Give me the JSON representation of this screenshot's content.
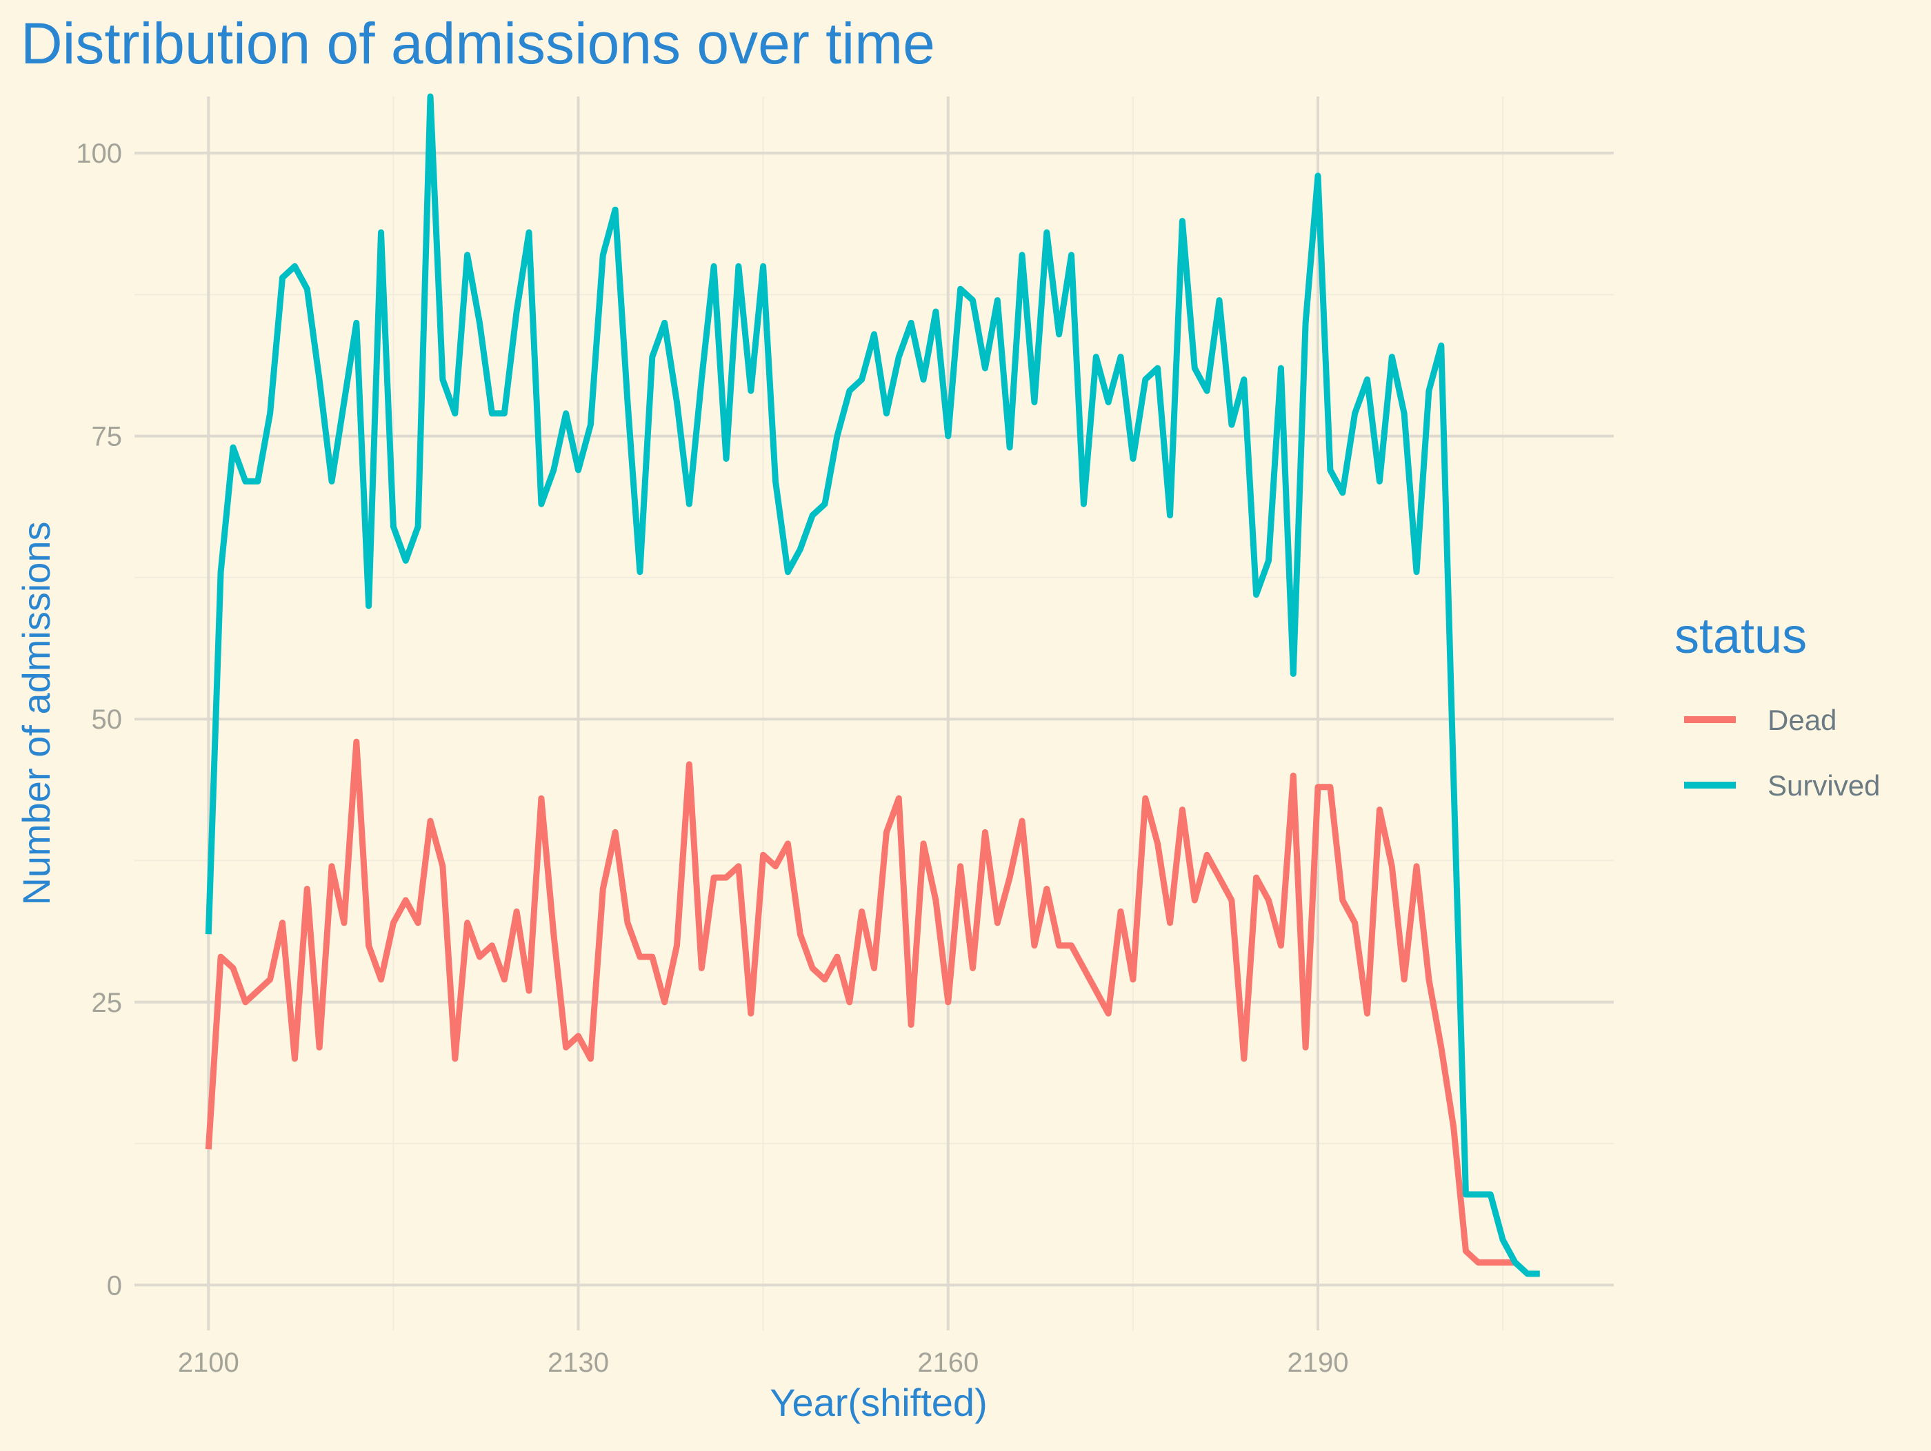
{
  "colors": {
    "background": "#fdf6e3",
    "title": "#2a86d0",
    "tick": "#a3a39a",
    "grid_major": "#dedad0",
    "grid_minor": "#f2ecdd",
    "legend_text": "#6b7b84"
  },
  "chart_data": {
    "type": "line",
    "title": "Distribution of admissions over time",
    "xlabel": "Year(shifted)",
    "ylabel": "Number of admissions",
    "xlim": [
      2094.0,
      2214.0
    ],
    "ylim": [
      -4,
      105
    ],
    "x_ticks": [
      2100,
      2130,
      2160,
      2190
    ],
    "x_tick_labels": [
      "2100",
      "2130",
      "2160",
      "2190"
    ],
    "y_ticks": [
      0,
      25,
      50,
      75,
      100
    ],
    "y_tick_labels": [
      "0",
      "25",
      "50",
      "75",
      "100"
    ],
    "grid": true,
    "legend": {
      "title": "status",
      "position": "right",
      "entries": [
        "Dead",
        "Survived"
      ]
    },
    "x": [
      2100,
      2101,
      2102,
      2103,
      2104,
      2105,
      2106,
      2107,
      2108,
      2109,
      2110,
      2111,
      2112,
      2113,
      2114,
      2115,
      2116,
      2117,
      2118,
      2119,
      2120,
      2121,
      2122,
      2123,
      2124,
      2125,
      2126,
      2127,
      2128,
      2129,
      2130,
      2131,
      2132,
      2133,
      2134,
      2135,
      2136,
      2137,
      2138,
      2139,
      2140,
      2141,
      2142,
      2143,
      2144,
      2145,
      2146,
      2147,
      2148,
      2149,
      2150,
      2151,
      2152,
      2153,
      2154,
      2155,
      2156,
      2157,
      2158,
      2159,
      2160,
      2161,
      2162,
      2163,
      2164,
      2165,
      2166,
      2167,
      2168,
      2169,
      2170,
      2171,
      2172,
      2173,
      2174,
      2175,
      2176,
      2177,
      2178,
      2179,
      2180,
      2181,
      2182,
      2183,
      2184,
      2185,
      2186,
      2187,
      2188,
      2189,
      2190,
      2191,
      2192,
      2193,
      2194,
      2195,
      2196,
      2197,
      2198,
      2199,
      2200,
      2201,
      2202,
      2203,
      2204,
      2205,
      2206,
      2207,
      2208
    ],
    "series": [
      {
        "name": "Dead",
        "color": "#f8766d",
        "values": [
          12,
          29,
          28,
          25,
          26,
          27,
          32,
          20,
          35,
          21,
          37,
          32,
          48,
          30,
          27,
          32,
          34,
          32,
          41,
          37,
          20,
          32,
          29,
          30,
          27,
          33,
          26,
          43,
          31,
          21,
          22,
          20,
          35,
          40,
          32,
          29,
          29,
          25,
          30,
          46,
          28,
          36,
          36,
          37,
          24,
          38,
          37,
          39,
          31,
          28,
          27,
          29,
          25,
          33,
          28,
          40,
          43,
          23,
          39,
          34,
          25,
          37,
          28,
          40,
          32,
          36,
          41,
          30,
          35,
          30,
          30,
          28,
          26,
          24,
          33,
          27,
          43,
          39,
          32,
          42,
          34,
          38,
          36,
          34,
          20,
          36,
          34,
          30,
          45,
          21,
          44,
          44,
          34,
          32,
          24,
          42,
          37,
          27,
          37,
          27,
          21,
          14,
          3,
          2,
          2,
          2,
          2,
          null,
          null
        ]
      },
      {
        "name": "Survived",
        "color": "#00bfc4",
        "values": [
          31,
          63,
          74,
          71,
          71,
          77,
          89,
          90,
          88,
          80,
          71,
          78,
          85,
          60,
          93,
          67,
          64,
          67,
          105,
          80,
          77,
          91,
          85,
          77,
          77,
          86,
          93,
          69,
          72,
          77,
          72,
          76,
          91,
          95,
          78,
          63,
          82,
          85,
          78,
          69,
          80,
          90,
          73,
          90,
          79,
          90,
          71,
          63,
          65,
          68,
          69,
          75,
          79,
          80,
          84,
          77,
          82,
          85,
          80,
          86,
          75,
          88,
          87,
          81,
          87,
          74,
          91,
          78,
          93,
          84,
          91,
          69,
          82,
          78,
          82,
          73,
          80,
          81,
          68,
          94,
          81,
          79,
          87,
          76,
          80,
          61,
          64,
          81,
          54,
          85,
          98,
          72,
          70,
          77,
          80,
          71,
          82,
          77,
          63,
          79,
          83,
          45,
          8,
          8,
          8,
          4,
          2,
          1,
          1
        ]
      }
    ]
  }
}
